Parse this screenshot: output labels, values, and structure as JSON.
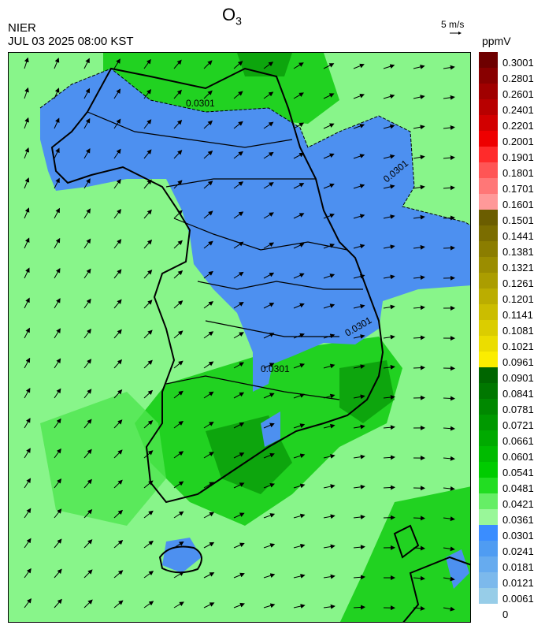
{
  "header": {
    "org": "NIER",
    "datetime": "JUL 03 2025 08:00 KST",
    "title_main": "O",
    "title_sub": "3",
    "wind_ref": "5 m/s",
    "unit": "ppmV"
  },
  "colorbar": {
    "levels": [
      "0.3001",
      "0.2801",
      "0.2601",
      "0.2401",
      "0.2201",
      "0.2001",
      "0.1901",
      "0.1801",
      "0.1701",
      "0.1601",
      "0.1501",
      "0.1441",
      "0.1381",
      "0.1321",
      "0.1261",
      "0.1201",
      "0.1141",
      "0.1081",
      "0.1021",
      "0.0961",
      "0.0901",
      "0.0841",
      "0.0781",
      "0.0721",
      "0.0661",
      "0.0601",
      "0.0541",
      "0.0481",
      "0.0421",
      "0.0361",
      "0.0301",
      "0.0241",
      "0.0181",
      "0.0121",
      "0.0061",
      "0"
    ],
    "colors": [
      "#6e0000",
      "#880000",
      "#a00000",
      "#b80000",
      "#d20000",
      "#ee0000",
      "#ff2b2b",
      "#ff5555",
      "#ff7777",
      "#ff9999",
      "#6b5d00",
      "#7b6d00",
      "#8b7d00",
      "#9b8d00",
      "#ab9d00",
      "#bbad00",
      "#cbbd00",
      "#dbcd00",
      "#ebdd00",
      "#fbed00",
      "#006600",
      "#007700",
      "#008800",
      "#009900",
      "#00aa00",
      "#00bb00",
      "#00cc00",
      "#22dd22",
      "#66ee66",
      "#99f799",
      "#3a8dff",
      "#4f9cf2",
      "#66abef",
      "#7cb9ec",
      "#97cde8"
    ]
  },
  "map": {
    "contour_label": "0.0301",
    "colors": {
      "sea_light": "#88f58a",
      "mid_green": "#4fe64f",
      "bright_green": "#21d221",
      "dark_green": "#0da50d",
      "blue": "#4d90f0",
      "boundary": "#000000",
      "sub_boundary": "#cccccc"
    }
  }
}
